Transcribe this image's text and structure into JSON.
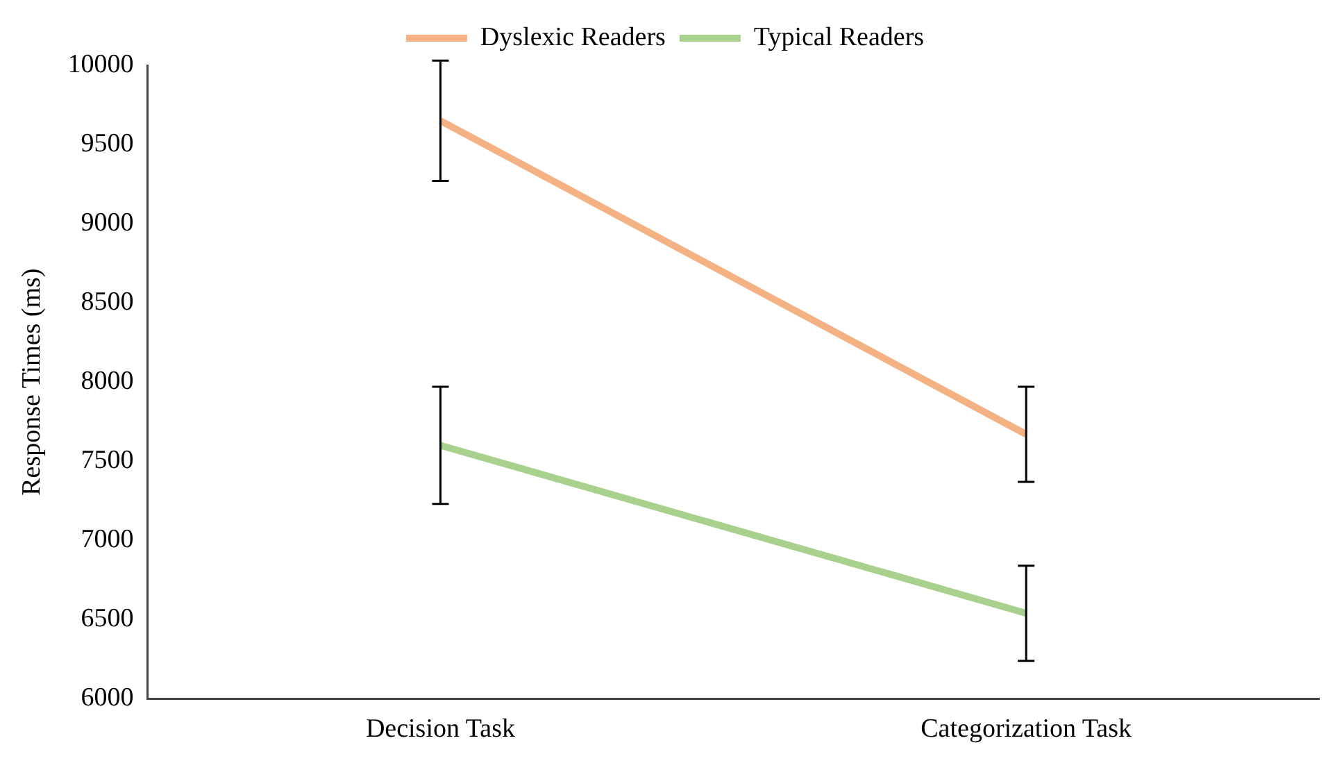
{
  "chart_data": {
    "type": "line",
    "ylabel": "Response Times (ms)",
    "categories": [
      "Decision Task",
      "Categorization Task"
    ],
    "series": [
      {
        "name": "Dyslexic Readers",
        "color": "#f4b183",
        "values": [
          9650,
          7670
        ],
        "errors": [
          380,
          300
        ]
      },
      {
        "name": "Typical Readers",
        "color": "#a9d18e",
        "values": [
          7600,
          6540
        ],
        "errors": [
          370,
          300
        ]
      }
    ],
    "ylim": [
      6000,
      10000
    ],
    "yticks": [
      6000,
      6500,
      7000,
      7500,
      8000,
      8500,
      9000,
      9500,
      10000
    ],
    "grid": false,
    "legend": "top",
    "marker": "none",
    "line_style": "solid"
  }
}
